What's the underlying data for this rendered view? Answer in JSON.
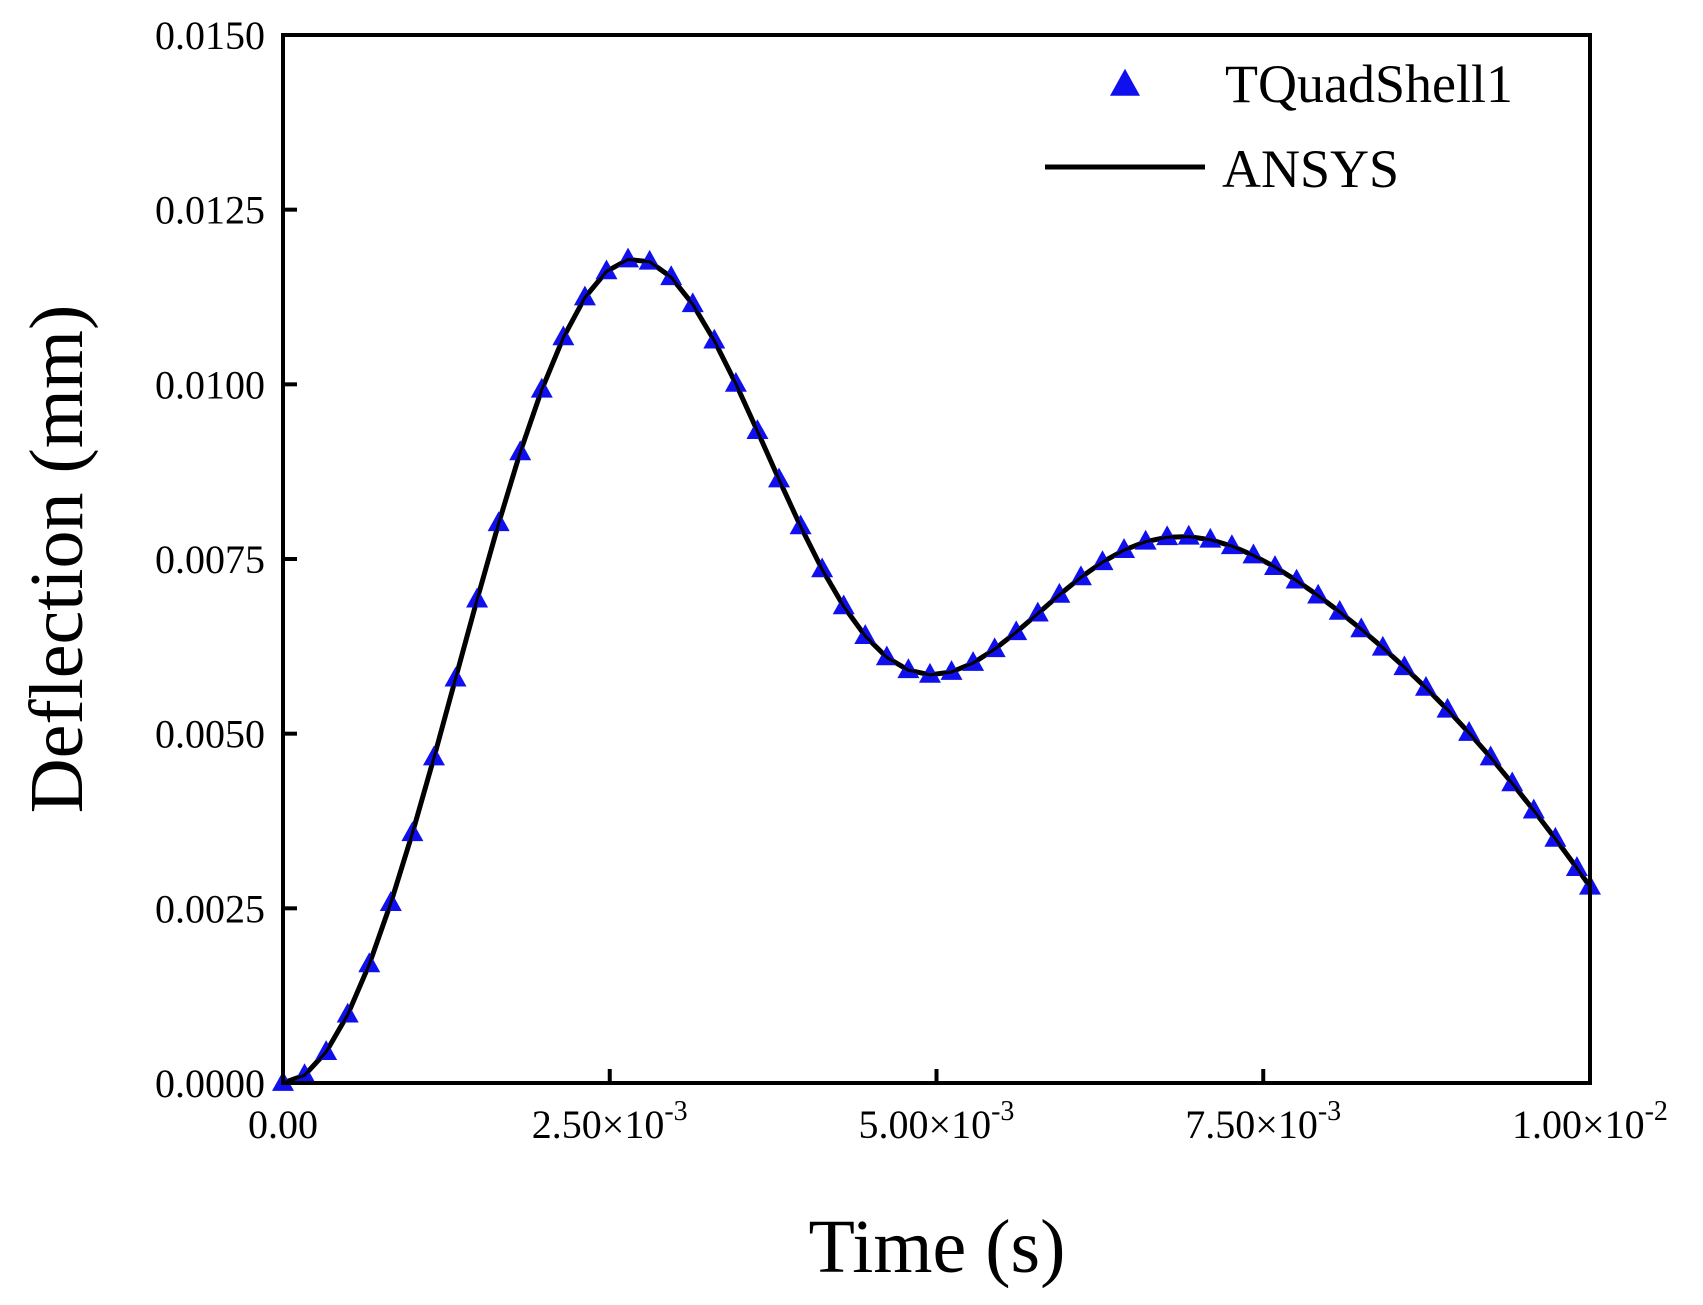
{
  "chart_data": {
    "type": "line",
    "xlabel": "Time (s)",
    "ylabel": "Deflection (mm)",
    "xlim": [
      0,
      0.01
    ],
    "ylim": [
      0,
      0.015
    ],
    "x_ticks": [
      {
        "value": 0,
        "mantissa": "0.00",
        "times": "",
        "base": "",
        "exponent": ""
      },
      {
        "value": 0.0025,
        "mantissa": "2.50",
        "times": "×",
        "base": "10",
        "exponent": "-3"
      },
      {
        "value": 0.005,
        "mantissa": "5.00",
        "times": "×",
        "base": "10",
        "exponent": "-3"
      },
      {
        "value": 0.0075,
        "mantissa": "7.50",
        "times": "×",
        "base": "10",
        "exponent": "-3"
      },
      {
        "value": 0.01,
        "mantissa": "1.00",
        "times": "×",
        "base": "10",
        "exponent": "-2"
      }
    ],
    "y_ticks": [
      {
        "value": 0,
        "label": "0.0000"
      },
      {
        "value": 0.0025,
        "label": "0.0025"
      },
      {
        "value": 0.005,
        "label": "0.0050"
      },
      {
        "value": 0.0075,
        "label": "0.0075"
      },
      {
        "value": 0.01,
        "label": "0.0100"
      },
      {
        "value": 0.0125,
        "label": "0.0125"
      },
      {
        "value": 0.015,
        "label": "0.0150"
      }
    ],
    "legend_position": "top-right",
    "series": [
      {
        "name": "TQuadShell1",
        "style": "marker-triangle",
        "color": "#1010ee",
        "x": [
          0,
          0.000165,
          0.00033,
          0.000495,
          0.00066,
          0.000825,
          0.00099,
          0.001155,
          0.00132,
          0.001485,
          0.00165,
          0.001815,
          0.00198,
          0.002145,
          0.00231,
          0.002475,
          0.00264,
          0.002805,
          0.00297,
          0.003135,
          0.0033,
          0.003465,
          0.00363,
          0.003795,
          0.00396,
          0.004125,
          0.00429,
          0.004455,
          0.00462,
          0.004785,
          0.00495,
          0.005115,
          0.00528,
          0.005445,
          0.00561,
          0.005775,
          0.00594,
          0.006105,
          0.00627,
          0.006435,
          0.0066,
          0.006765,
          0.00693,
          0.007095,
          0.00726,
          0.007425,
          0.00759,
          0.007755,
          0.00792,
          0.008085,
          0.00825,
          0.008415,
          0.00858,
          0.008745,
          0.00891,
          0.009075,
          0.00924,
          0.009405,
          0.00957,
          0.009735,
          0.0099,
          0.01
        ],
        "y": [
          0,
          0.000112,
          0.000443,
          0.000979,
          0.001699,
          0.002576,
          0.003575,
          0.004659,
          0.005788,
          0.00692,
          0.008013,
          0.009027,
          0.009924,
          0.010672,
          0.011243,
          0.011617,
          0.011787,
          0.011755,
          0.011534,
          0.011147,
          0.010626,
          0.010007,
          0.009331,
          0.008638,
          0.007967,
          0.007352,
          0.006822,
          0.006397,
          0.006092,
          0.005909,
          0.005843,
          0.005883,
          0.006012,
          0.006209,
          0.006452,
          0.006719,
          0.006988,
          0.007238,
          0.007455,
          0.007628,
          0.007748,
          0.007812,
          0.00782,
          0.007776,
          0.007684,
          0.007551,
          0.007385,
          0.007191,
          0.006976,
          0.006743,
          0.006494,
          0.00623,
          0.005951,
          0.005656,
          0.005343,
          0.005011,
          0.00466,
          0.004289,
          0.0039,
          0.003495,
          0.003077,
          0.002809
        ]
      },
      {
        "name": "ANSYS",
        "style": "line",
        "color": "#000000",
        "x": [
          0,
          0.000165,
          0.00033,
          0.000495,
          0.00066,
          0.000825,
          0.00099,
          0.001155,
          0.00132,
          0.001485,
          0.00165,
          0.001815,
          0.00198,
          0.002145,
          0.00231,
          0.002475,
          0.00264,
          0.002805,
          0.00297,
          0.003135,
          0.0033,
          0.003465,
          0.00363,
          0.003795,
          0.00396,
          0.004125,
          0.00429,
          0.004455,
          0.00462,
          0.004785,
          0.00495,
          0.005115,
          0.00528,
          0.005445,
          0.00561,
          0.005775,
          0.00594,
          0.006105,
          0.00627,
          0.006435,
          0.0066,
          0.006765,
          0.00693,
          0.007095,
          0.00726,
          0.007425,
          0.00759,
          0.007755,
          0.00792,
          0.008085,
          0.00825,
          0.008415,
          0.00858,
          0.008745,
          0.00891,
          0.009075,
          0.00924,
          0.009405,
          0.00957,
          0.009735,
          0.0099,
          0.01
        ],
        "y": [
          0,
          0.000112,
          0.000443,
          0.000979,
          0.001699,
          0.002576,
          0.003575,
          0.004659,
          0.005788,
          0.00692,
          0.008013,
          0.009027,
          0.009924,
          0.010672,
          0.011243,
          0.011617,
          0.011787,
          0.011755,
          0.011534,
          0.011147,
          0.010626,
          0.010007,
          0.009331,
          0.008638,
          0.007967,
          0.007352,
          0.006822,
          0.006397,
          0.006092,
          0.005909,
          0.005843,
          0.005883,
          0.006012,
          0.006209,
          0.006452,
          0.006719,
          0.006988,
          0.007238,
          0.007455,
          0.007628,
          0.007748,
          0.007812,
          0.00782,
          0.007776,
          0.007684,
          0.007551,
          0.007385,
          0.007191,
          0.006976,
          0.006743,
          0.006494,
          0.00623,
          0.005951,
          0.005656,
          0.005343,
          0.005011,
          0.00466,
          0.004289,
          0.0039,
          0.003495,
          0.003077,
          0.002809
        ]
      }
    ]
  }
}
